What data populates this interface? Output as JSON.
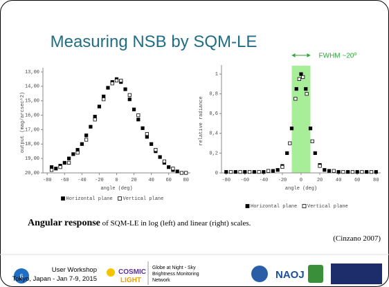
{
  "slide": {
    "title": "Measuring NSB by SQM-LE",
    "caption_bold": "Angular response",
    "caption_rest": " of SQM-LE in log (left) and linear (right) scales.",
    "citation": "(Cinzano 2007)",
    "page_number": "6",
    "footer": {
      "event": "User Workshop",
      "place": "Tokyo, Japan - Jan 7-9, 2015",
      "cosmic": "COSMIC",
      "light": "LIGHT",
      "globe_lines": [
        "Globe at Night - Sky",
        "Brightness Monitoring",
        "Network"
      ],
      "naoj": "NAOJ"
    }
  },
  "chart_data": [
    {
      "type": "scatter",
      "x_label": "angle (deg)",
      "y_label": "output (mag/arcsec^2)",
      "xlim": [
        -85,
        85
      ],
      "xticks": [
        -80,
        -60,
        -40,
        -20,
        0,
        20,
        40,
        60,
        80
      ],
      "ylim": [
        20,
        13
      ],
      "yticks": [
        {
          "value": 13,
          "label": "13,00"
        },
        {
          "value": 14,
          "label": "14,00"
        },
        {
          "value": 15,
          "label": "15,00"
        },
        {
          "value": 16,
          "label": "16,00"
        },
        {
          "value": 17,
          "label": "17,00"
        },
        {
          "value": 18,
          "label": "18,00"
        },
        {
          "value": 19,
          "label": "19,00"
        },
        {
          "value": 20,
          "label": "20,00"
        }
      ],
      "series": [
        {
          "name": "Horizontal plane",
          "color": "#000000",
          "marker": "filled",
          "x": [
            -75,
            -70,
            -65,
            -60,
            -55,
            -50,
            -45,
            -40,
            -35,
            -30,
            -25,
            -20,
            -15,
            -10,
            -5,
            0,
            5,
            10,
            15,
            20,
            25,
            30,
            35,
            40,
            45,
            50,
            55,
            60,
            65,
            70
          ],
          "values": [
            19.6,
            19.7,
            19.5,
            19.3,
            19.0,
            18.7,
            18.4,
            18.0,
            17.4,
            16.8,
            16.1,
            15.4,
            14.7,
            14.1,
            13.7,
            13.5,
            13.7,
            14.2,
            14.9,
            15.6,
            16.3,
            16.9,
            17.5,
            18.0,
            18.5,
            18.9,
            19.3,
            19.6,
            19.8,
            19.9
          ]
        },
        {
          "name": "Vertical plane",
          "color": "#000000",
          "marker": "open",
          "x": [
            -75,
            -65,
            -55,
            -45,
            -35,
            -25,
            -15,
            -5,
            0,
            5,
            15,
            25,
            35,
            45,
            55,
            65,
            75,
            80
          ],
          "values": [
            19.8,
            19.6,
            19.3,
            18.6,
            17.7,
            16.3,
            14.9,
            13.8,
            13.6,
            13.6,
            14.6,
            16.0,
            17.3,
            18.4,
            19.2,
            19.7,
            20.0,
            20.0
          ]
        }
      ]
    },
    {
      "type": "scatter",
      "x_label": "angle (deg)",
      "y_label": "relative radiance",
      "xlim": [
        -85,
        85
      ],
      "xticks": [
        -80,
        -60,
        -40,
        -20,
        0,
        20,
        40,
        60,
        80
      ],
      "ylim": [
        0,
        1.05
      ],
      "yticks": [
        0,
        {
          "value": 0.2,
          "label": "0,2"
        },
        {
          "value": 0.4,
          "label": "0,4"
        },
        {
          "value": 0.6,
          "label": "0,6"
        },
        {
          "value": 0.8,
          "label": "0,8"
        },
        1
      ],
      "highlight_range": [
        -10,
        10
      ],
      "highlight_color": "#a8ee98",
      "annotation": "FWHM ~20º",
      "annotation_color": "#2fa63a",
      "series": [
        {
          "name": "Horizontal plane",
          "color": "#000000",
          "marker": "filled",
          "x": [
            -80,
            -70,
            -60,
            -50,
            -40,
            -30,
            -25,
            -20,
            -15,
            -10,
            -5,
            0,
            5,
            10,
            15,
            20,
            25,
            30,
            40,
            50,
            60,
            70,
            80
          ],
          "values": [
            0.01,
            0.01,
            0.01,
            0.01,
            0.01,
            0.02,
            0.03,
            0.07,
            0.2,
            0.45,
            0.85,
            1.0,
            0.85,
            0.45,
            0.2,
            0.08,
            0.03,
            0.02,
            0.01,
            0.01,
            0.01,
            0.01,
            0.01
          ]
        },
        {
          "name": "Vertical plane",
          "color": "#000000",
          "marker": "open",
          "x": [
            -75,
            -65,
            -55,
            -45,
            -35,
            -20,
            -12,
            -6,
            -2,
            2,
            6,
            12,
            20,
            35,
            45,
            55,
            65,
            75
          ],
          "values": [
            0.01,
            0.01,
            0.01,
            0.01,
            0.02,
            0.06,
            0.3,
            0.75,
            0.95,
            0.97,
            0.8,
            0.32,
            0.07,
            0.02,
            0.01,
            0.01,
            0.01,
            0.01
          ]
        }
      ]
    }
  ]
}
